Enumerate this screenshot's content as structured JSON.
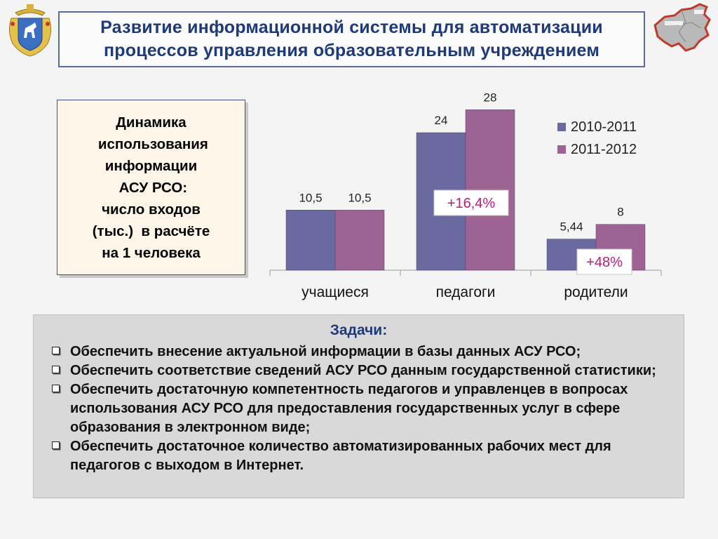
{
  "title": {
    "line1": "Развитие информационной системы  для автоматизации",
    "line2": "процессов управления образовательным учреждением"
  },
  "caption": {
    "lines": [
      "Динамика",
      " использования",
      "информации",
      " АСУ РСО:",
      "число входов",
      "(тыс.)  в расчёте",
      "на 1 человека"
    ]
  },
  "icons": {
    "emblem": "samara-coat-of-arms-icon",
    "map": "region-map-icon"
  },
  "chart_data": {
    "type": "bar",
    "categories": [
      "учащиеся",
      "педагоги",
      "родители"
    ],
    "series": [
      {
        "name": "2010-2011",
        "values": [
          10.5,
          24,
          5.44
        ],
        "labels": [
          "10,5",
          "24",
          "5,44"
        ],
        "color": "#6b6aa0"
      },
      {
        "name": "2011-2012",
        "values": [
          10.5,
          28,
          8
        ],
        "labels": [
          "10,5",
          "28",
          "8"
        ],
        "color": "#9c6393"
      }
    ],
    "ylim": [
      0,
      30
    ],
    "grid": false,
    "legend": "right",
    "annotations": [
      {
        "category": "педагоги",
        "text": "+16,4%"
      },
      {
        "category": "родители",
        "text": "+48%"
      }
    ]
  },
  "tasks": {
    "title": "Задачи:",
    "items": [
      "Обеспечить внесение актуальной информации в базы данных АСУ РСО;",
      "Обеспечить соответствие сведений АСУ РСО данным государственной статистики;",
      "Обеспечить достаточную компетентность педагогов и управленцев в вопросах использования АСУ РСО для предоставления государственных услуг в сфере образования в электронном виде;",
      "Обеспечить достаточное количество автоматизированных рабочих мест для педагогов  с выходом в Интернет."
    ]
  }
}
